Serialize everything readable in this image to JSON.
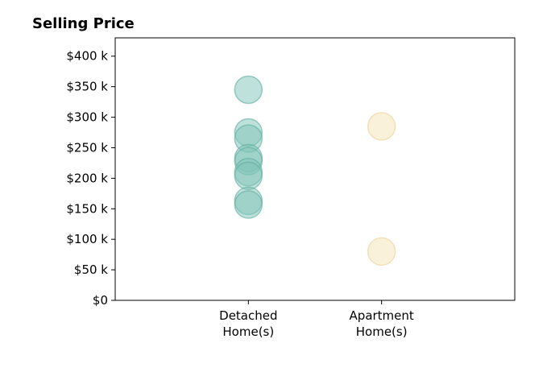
{
  "chart_data": {
    "type": "scatter",
    "title": "Selling Price",
    "xlabel": "",
    "ylabel": "",
    "categories": [
      [
        "Detached",
        "Home(s)"
      ],
      [
        "Apartment",
        "Home(s)"
      ]
    ],
    "xlim": [
      -0.5,
      2.5
    ],
    "ylim": [
      0,
      430000
    ],
    "yticks": [
      0,
      50000,
      100000,
      150000,
      200000,
      250000,
      300000,
      350000,
      400000
    ],
    "ytick_labels": [
      "$0",
      "$50 k",
      "$100 k",
      "$150 k",
      "$200 k",
      "$250 k",
      "$300 k",
      "$350 k",
      "$400 k"
    ],
    "grid": false,
    "series": [
      {
        "category": "Detached Home(s)",
        "x": 0.5,
        "color": "#7fc4b8",
        "edge_color": "#5fae9f",
        "values": [
          345000,
          275000,
          265000,
          233000,
          228000,
          210000,
          204000,
          163000,
          157000
        ]
      },
      {
        "category": "Apartment Home(s)",
        "x": 1.5,
        "color": "#f5e3b5",
        "edge_color": "#ead29a",
        "values": [
          285000,
          80000
        ]
      }
    ]
  }
}
